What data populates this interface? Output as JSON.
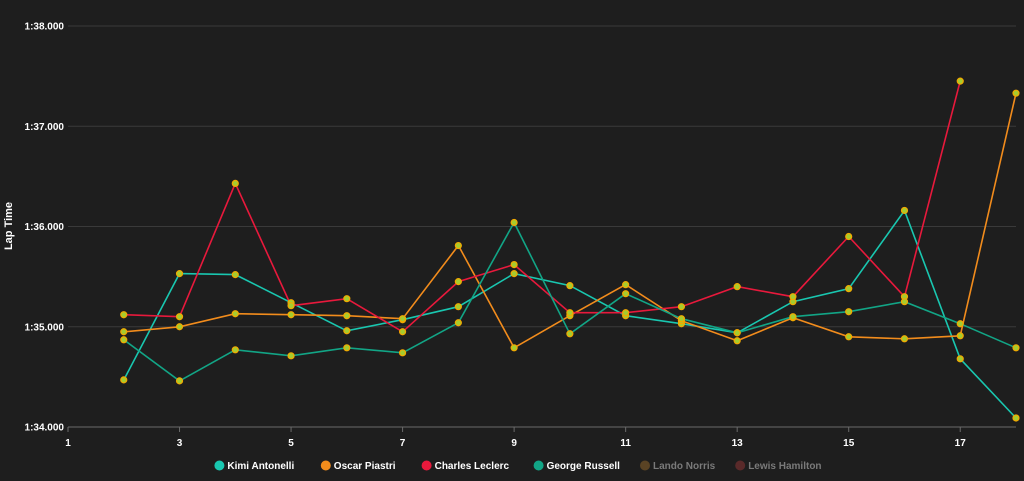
{
  "chart_data": {
    "type": "line",
    "ylabel": "Lap Time",
    "xlabel": "",
    "x_ticks": [
      "1",
      "3",
      "5",
      "7",
      "9",
      "11",
      "13",
      "15",
      "17"
    ],
    "y_ticks": [
      "1:34.000",
      "1:35.000",
      "1:36.000",
      "1:37.000",
      "1:38.000"
    ],
    "xlim": [
      1,
      18
    ],
    "ylim": [
      94.0,
      98.0
    ],
    "grid": "horizontal",
    "legend_position": "bottom",
    "series": [
      {
        "name": "Kimi Antonelli",
        "color": "#19c7b0",
        "x": [
          2,
          3,
          4,
          5,
          6,
          7,
          8,
          9,
          10,
          11,
          12,
          13,
          14,
          15,
          16,
          17,
          18
        ],
        "values": [
          94.47,
          95.53,
          95.52,
          95.24,
          94.96,
          95.07,
          95.2,
          95.53,
          95.41,
          95.11,
          95.03,
          94.94,
          95.25,
          95.38,
          96.16,
          94.68,
          94.09
        ]
      },
      {
        "name": "Oscar Piastri",
        "color": "#f28c1c",
        "x": [
          2,
          3,
          4,
          5,
          6,
          7,
          8,
          9,
          10,
          11,
          12,
          13,
          14,
          15,
          16,
          17,
          18
        ],
        "values": [
          94.95,
          95.0,
          95.13,
          95.12,
          95.11,
          95.08,
          95.81,
          94.79,
          95.11,
          95.42,
          95.06,
          94.86,
          95.09,
          94.9,
          94.88,
          94.91,
          97.33
        ]
      },
      {
        "name": "Charles Leclerc",
        "color": "#e8193c",
        "x": [
          2,
          3,
          4,
          5,
          6,
          7,
          8,
          9,
          10,
          11,
          12,
          13,
          14,
          15,
          16,
          17
        ],
        "values": [
          95.12,
          95.1,
          96.43,
          95.21,
          95.28,
          94.95,
          95.45,
          95.62,
          95.14,
          95.14,
          95.2,
          95.4,
          95.3,
          95.9,
          95.3,
          97.45
        ]
      },
      {
        "name": "George Russell",
        "color": "#12a586",
        "x": [
          2,
          3,
          4,
          5,
          6,
          7,
          8,
          9,
          10,
          11,
          12,
          13,
          14,
          15,
          16,
          17,
          18
        ],
        "values": [
          94.87,
          94.46,
          94.77,
          94.71,
          94.79,
          94.74,
          95.04,
          96.04,
          94.93,
          95.33,
          95.08,
          94.94,
          95.1,
          95.15,
          95.25,
          95.03,
          94.79
        ]
      }
    ],
    "hidden_series": [
      {
        "name": "Lando Norris",
        "color": "#5a4324"
      },
      {
        "name": "Lewis Hamilton",
        "color": "#5a2a2a"
      }
    ],
    "marker_fill": "#a6cc2e",
    "marker_stroke": "#f2a900",
    "active_text_color": "#ffffff",
    "inactive_text_color": "#7a7a7a"
  }
}
